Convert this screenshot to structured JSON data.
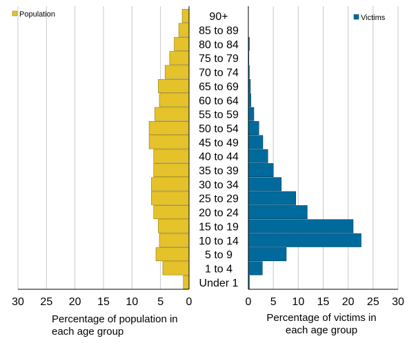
{
  "chart_data": {
    "type": "bar",
    "orientation": "horizontal",
    "layout": "population-pyramid",
    "categories": [
      "90+",
      "85 to 89",
      "80 to 84",
      "75 to 79",
      "70 to 74",
      "65 to 69",
      "60 to 64",
      "55 to 59",
      "50 to 54",
      "45 to 49",
      "40 to 44",
      "35 to 39",
      "30 to 34",
      "25 to 29",
      "20 to 24",
      "15 to 19",
      "10 to 14",
      "5 to 9",
      "1 to 4",
      "Under 1"
    ],
    "left_panel": {
      "series_name": "Population",
      "color": "#E6C22A",
      "values": [
        1.2,
        1.8,
        2.6,
        3.4,
        4.2,
        5.4,
        5.2,
        6.0,
        7.0,
        7.0,
        6.2,
        6.2,
        6.6,
        6.6,
        6.2,
        5.4,
        5.2,
        5.8,
        4.6,
        1.0
      ],
      "xlim": [
        30,
        0
      ],
      "ticks": [
        "30",
        "25",
        "20",
        "15",
        "10",
        "5",
        "0"
      ],
      "xlabel_lines": [
        "Percentage of population in",
        "each age group"
      ]
    },
    "right_panel": {
      "series_name": "Victims",
      "color": "#006A9C",
      "values": [
        0,
        0,
        0.2,
        0.1,
        0.2,
        0.4,
        0.5,
        1.1,
        2.1,
        2.9,
        3.9,
        5.0,
        6.6,
        9.5,
        11.8,
        21.0,
        22.6,
        7.6,
        2.8,
        0.2
      ],
      "xlim": [
        0,
        30
      ],
      "ticks": [
        "0",
        "5",
        "10",
        "15",
        "20",
        "25",
        "30"
      ],
      "xlabel_lines": [
        "Percentage of victims in",
        "each age group"
      ]
    },
    "grid": true
  }
}
